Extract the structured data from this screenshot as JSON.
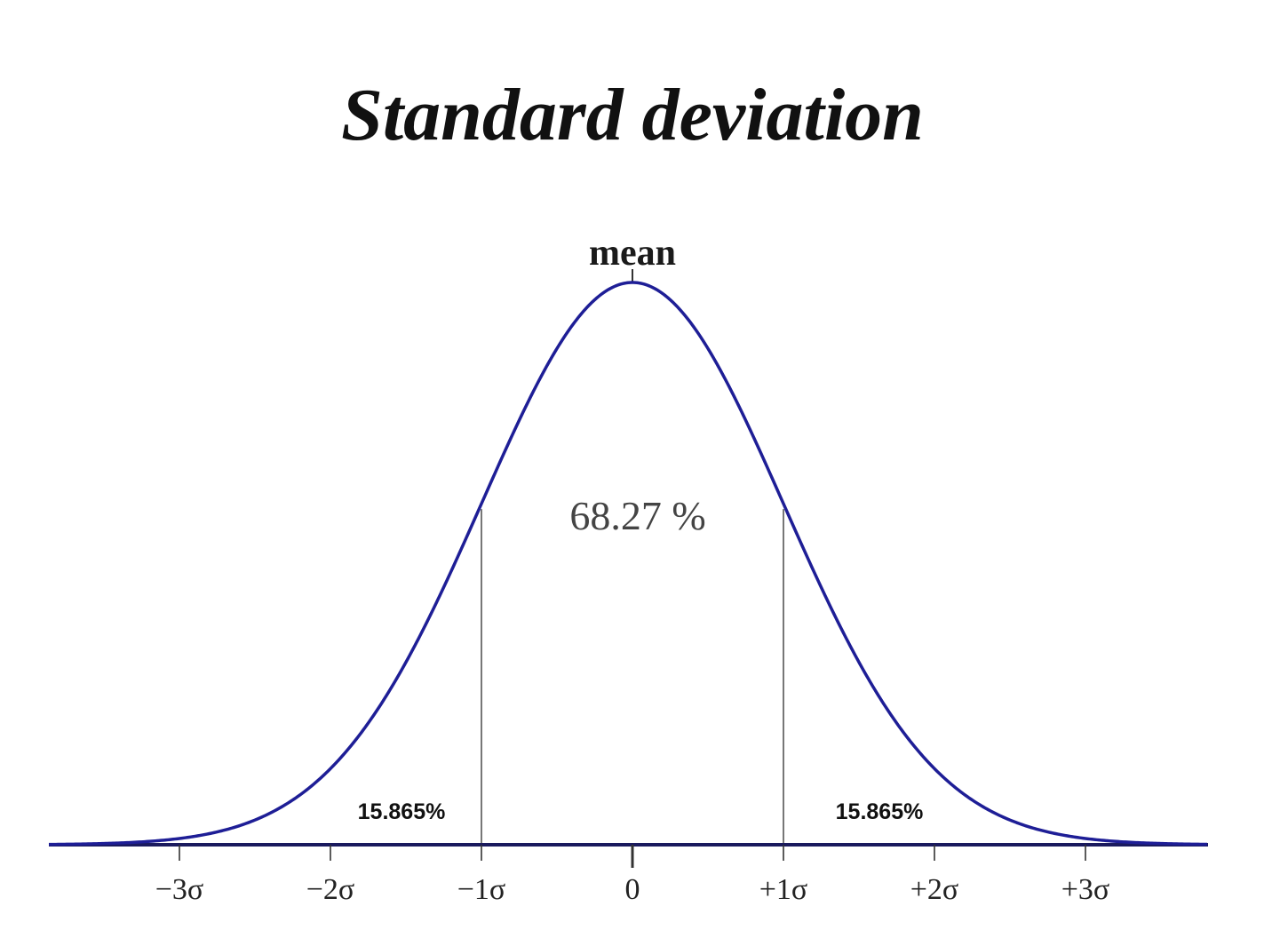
{
  "chart_data": {
    "type": "line",
    "title": "Standard deviation",
    "distribution": "normal",
    "mean": 0,
    "sigma": 1,
    "mean_label": "mean",
    "x_ticks": [
      {
        "value": -3,
        "label": "−3σ"
      },
      {
        "value": -2,
        "label": "−2σ"
      },
      {
        "value": -1,
        "label": "−1σ"
      },
      {
        "value": 0,
        "label": "0"
      },
      {
        "value": 1,
        "label": "+1σ"
      },
      {
        "value": 2,
        "label": "+2σ"
      },
      {
        "value": 3,
        "label": "+3σ"
      }
    ],
    "xlim": [
      -4,
      4
    ],
    "boundaries": [
      -1,
      1
    ],
    "regions": [
      {
        "from": -1,
        "to": 1,
        "label": "68.27 %"
      },
      {
        "from": -4,
        "to": -1,
        "label": "15.865%"
      },
      {
        "from": 1,
        "to": 4,
        "label": "15.865%"
      }
    ],
    "grid": false,
    "colors": {
      "curve": "#1e1e96",
      "axis": "#1a1a5e",
      "boundary": "#555555"
    }
  }
}
